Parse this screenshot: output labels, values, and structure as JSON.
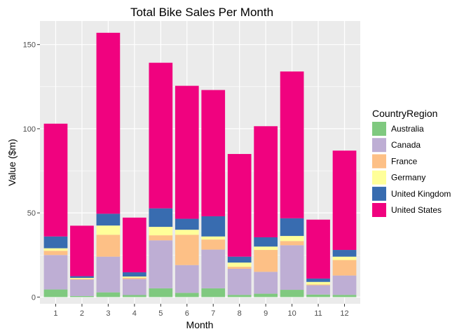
{
  "chart_data": {
    "type": "bar",
    "stacked": true,
    "title": "Total Bike Sales Per Month",
    "xlabel": "Month",
    "ylabel": "Value ($m)",
    "categories": [
      "1",
      "2",
      "3",
      "4",
      "5",
      "6",
      "7",
      "8",
      "9",
      "10",
      "11",
      "12"
    ],
    "yticks": [
      0,
      50,
      100,
      150
    ],
    "ylim": [
      -4,
      164
    ],
    "grid": true,
    "legend_title": "CountryRegion",
    "legend_position": "right",
    "series": [
      {
        "name": "Australia",
        "color": "#7fc97f",
        "values": [
          4.5,
          0.6,
          2.8,
          1.2,
          5.2,
          2.5,
          5.2,
          1.3,
          2.0,
          4.3,
          1.5,
          1.3
        ]
      },
      {
        "name": "Canada",
        "color": "#beaed4",
        "values": [
          20.5,
          9.8,
          21.2,
          9.5,
          28.5,
          16.5,
          23.0,
          15.5,
          13.0,
          26.5,
          5.5,
          11.5
        ]
      },
      {
        "name": "France",
        "color": "#fdc086",
        "values": [
          2.5,
          0.4,
          13.0,
          0.8,
          3.0,
          18.0,
          6.0,
          1.2,
          13.0,
          2.5,
          0.5,
          9.2
        ]
      },
      {
        "name": "Germany",
        "color": "#ffff99",
        "values": [
          1.5,
          0.6,
          5.5,
          0.7,
          5.0,
          3.0,
          1.8,
          2.5,
          2.0,
          3.0,
          1.5,
          2.0
        ]
      },
      {
        "name": "United Kingdom",
        "color": "#386cb0",
        "values": [
          7.0,
          1.0,
          7.0,
          2.5,
          11.0,
          6.5,
          12.0,
          3.5,
          5.5,
          10.5,
          2.0,
          4.0
        ]
      },
      {
        "name": "United States",
        "color": "#f0027f",
        "values": [
          67.0,
          30.0,
          107.5,
          32.5,
          86.5,
          79.0,
          75.0,
          61.0,
          66.0,
          87.2,
          35.0,
          59.0
        ]
      }
    ]
  },
  "colors": {
    "panel_background": "#ebebeb",
    "gridline": "#ffffff",
    "tick_text": "#4d4d4d"
  }
}
